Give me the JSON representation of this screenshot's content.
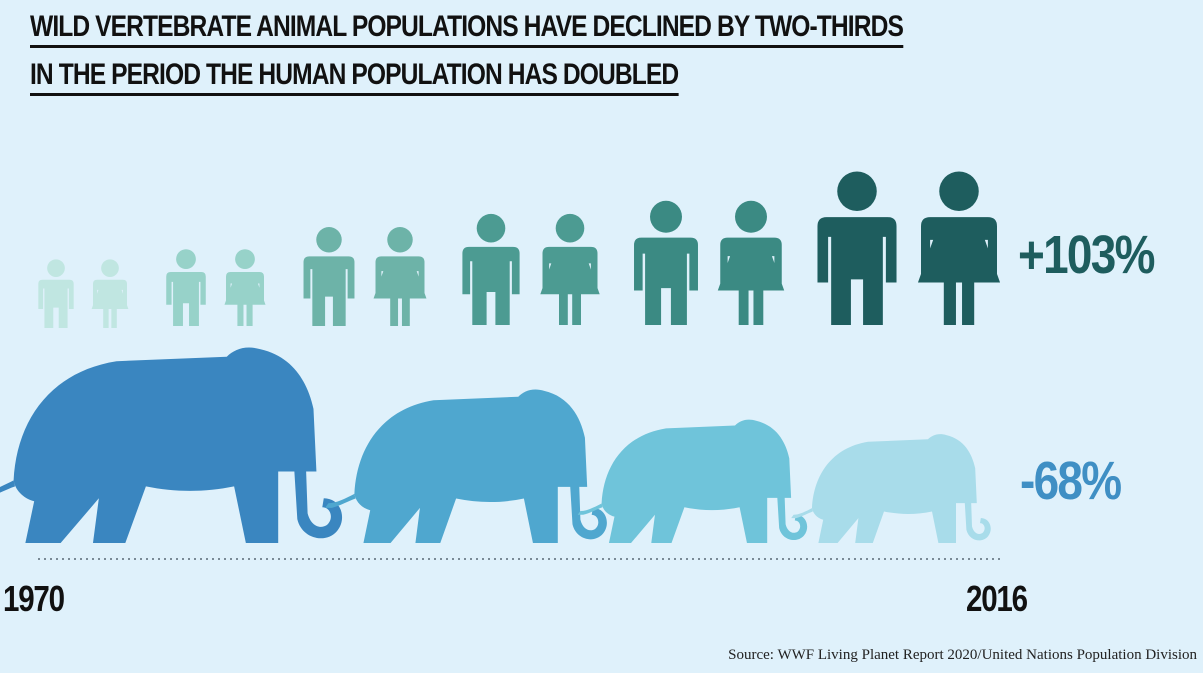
{
  "title": {
    "line1": "WILD VERTEBRATE ANIMAL POPULATIONS HAVE DECLINED BY TWO-THIRDS",
    "line2": "IN THE PERIOD THE HUMAN POPULATION HAS DOUBLED"
  },
  "human_change": "+103%",
  "wildlife_change": "-68%",
  "years": {
    "start": "1970",
    "end": "2016"
  },
  "source": "Source: WWF Living Planet Report 2020/United Nations Population Division",
  "icons": {
    "human": "man-woman-pair-icon",
    "animal": "elephant-icon"
  },
  "colors": {
    "background": "#dff1fb",
    "human_shades": [
      "#c0e6e1",
      "#97d2c9",
      "#6db3a8",
      "#4c9b92",
      "#3b8a83",
      "#1e5d5e"
    ],
    "elephant_shades": [
      "#3a86c0",
      "#4fa7cf",
      "#6fc4da",
      "#a8dcea"
    ],
    "human_text": "#1e5d5e",
    "wildlife_text": "#3f8fc4"
  }
}
